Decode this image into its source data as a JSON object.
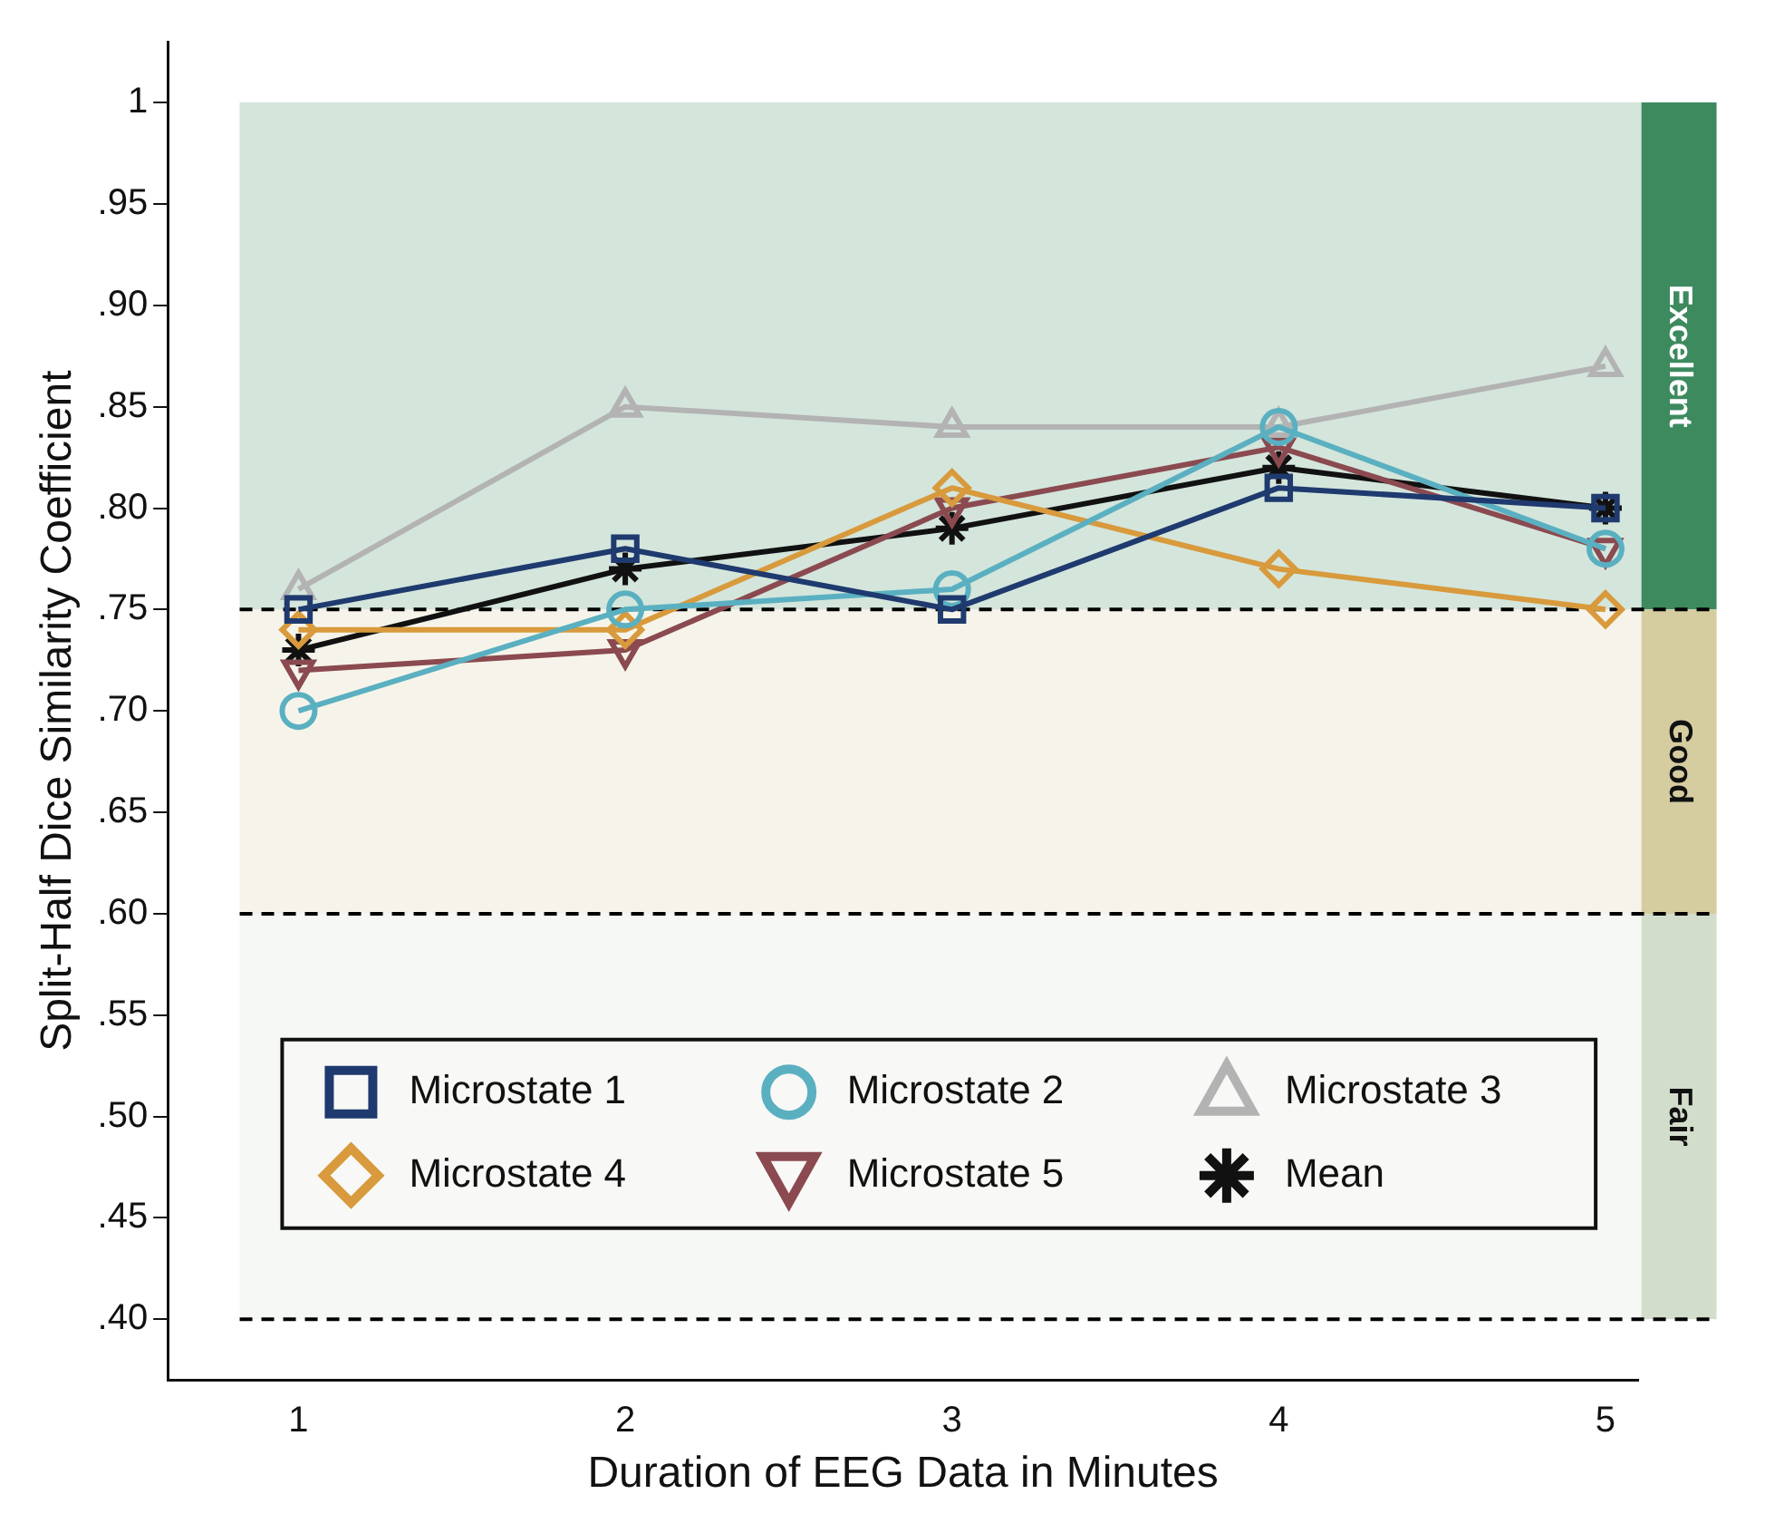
{
  "chart_data": {
    "type": "line",
    "xlabel": "Duration of EEG Data in Minutes",
    "ylabel": "Split-Half Dice Similarity Coefficient",
    "x": [
      1,
      2,
      3,
      4,
      5
    ],
    "series": [
      {
        "name": "Microstate 1",
        "color": "#1f3a6e",
        "marker": "square",
        "values": [
          0.75,
          0.78,
          0.75,
          0.81,
          0.8
        ]
      },
      {
        "name": "Microstate 2",
        "color": "#5ab0c0",
        "marker": "circle",
        "values": [
          0.7,
          0.75,
          0.76,
          0.84,
          0.78
        ]
      },
      {
        "name": "Microstate 3",
        "color": "#b3b3b3",
        "marker": "triangle",
        "values": [
          0.76,
          0.85,
          0.84,
          0.84,
          0.87
        ]
      },
      {
        "name": "Microstate 4",
        "color": "#d89a3c",
        "marker": "diamond",
        "values": [
          0.74,
          0.74,
          0.81,
          0.77,
          0.75
        ]
      },
      {
        "name": "Microstate 5",
        "color": "#8a4a50",
        "marker": "triangle-down",
        "values": [
          0.72,
          0.73,
          0.8,
          0.83,
          0.78
        ]
      },
      {
        "name": "Mean",
        "color": "#111111",
        "marker": "cross",
        "values": [
          0.73,
          0.77,
          0.79,
          0.82,
          0.8
        ]
      }
    ],
    "xlim": [
      0.6,
      5.1
    ],
    "xticks": [
      1,
      2,
      3,
      4,
      5
    ],
    "ylim": [
      0.37,
      1.03
    ],
    "yticks": [
      {
        "value": 0.4,
        "label": ".40"
      },
      {
        "value": 0.45,
        "label": ".45"
      },
      {
        "value": 0.5,
        "label": ".50"
      },
      {
        "value": 0.55,
        "label": ".55"
      },
      {
        "value": 0.6,
        "label": ".60"
      },
      {
        "value": 0.65,
        "label": ".65"
      },
      {
        "value": 0.7,
        "label": ".70"
      },
      {
        "value": 0.75,
        "label": ".75"
      },
      {
        "value": 0.8,
        "label": ".80"
      },
      {
        "value": 0.85,
        "label": ".85"
      },
      {
        "value": 0.9,
        "label": ".90"
      },
      {
        "value": 0.95,
        "label": ".95"
      },
      {
        "value": 1,
        "label": "1"
      }
    ],
    "bands": [
      {
        "axis": "y",
        "from": 0.75,
        "to": 1,
        "label": "Excellent",
        "color": "#3d8a5f"
      },
      {
        "axis": "y",
        "from": 0.6,
        "to": 0.75,
        "label": "Good",
        "color": "#d5cca0"
      },
      {
        "axis": "y",
        "from": 0.4,
        "to": 0.6,
        "label": "Fair",
        "color": "#d2ddcc"
      }
    ],
    "ref_lines": [
      {
        "axis": "y",
        "value": 0.75,
        "line_style": "dashed"
      },
      {
        "axis": "y",
        "value": 0.6,
        "line_style": "dashed"
      },
      {
        "axis": "y",
        "value": 0.4,
        "line_style": "dashed"
      }
    ],
    "grid": false,
    "legend": "bottom",
    "line_style": "solid"
  }
}
